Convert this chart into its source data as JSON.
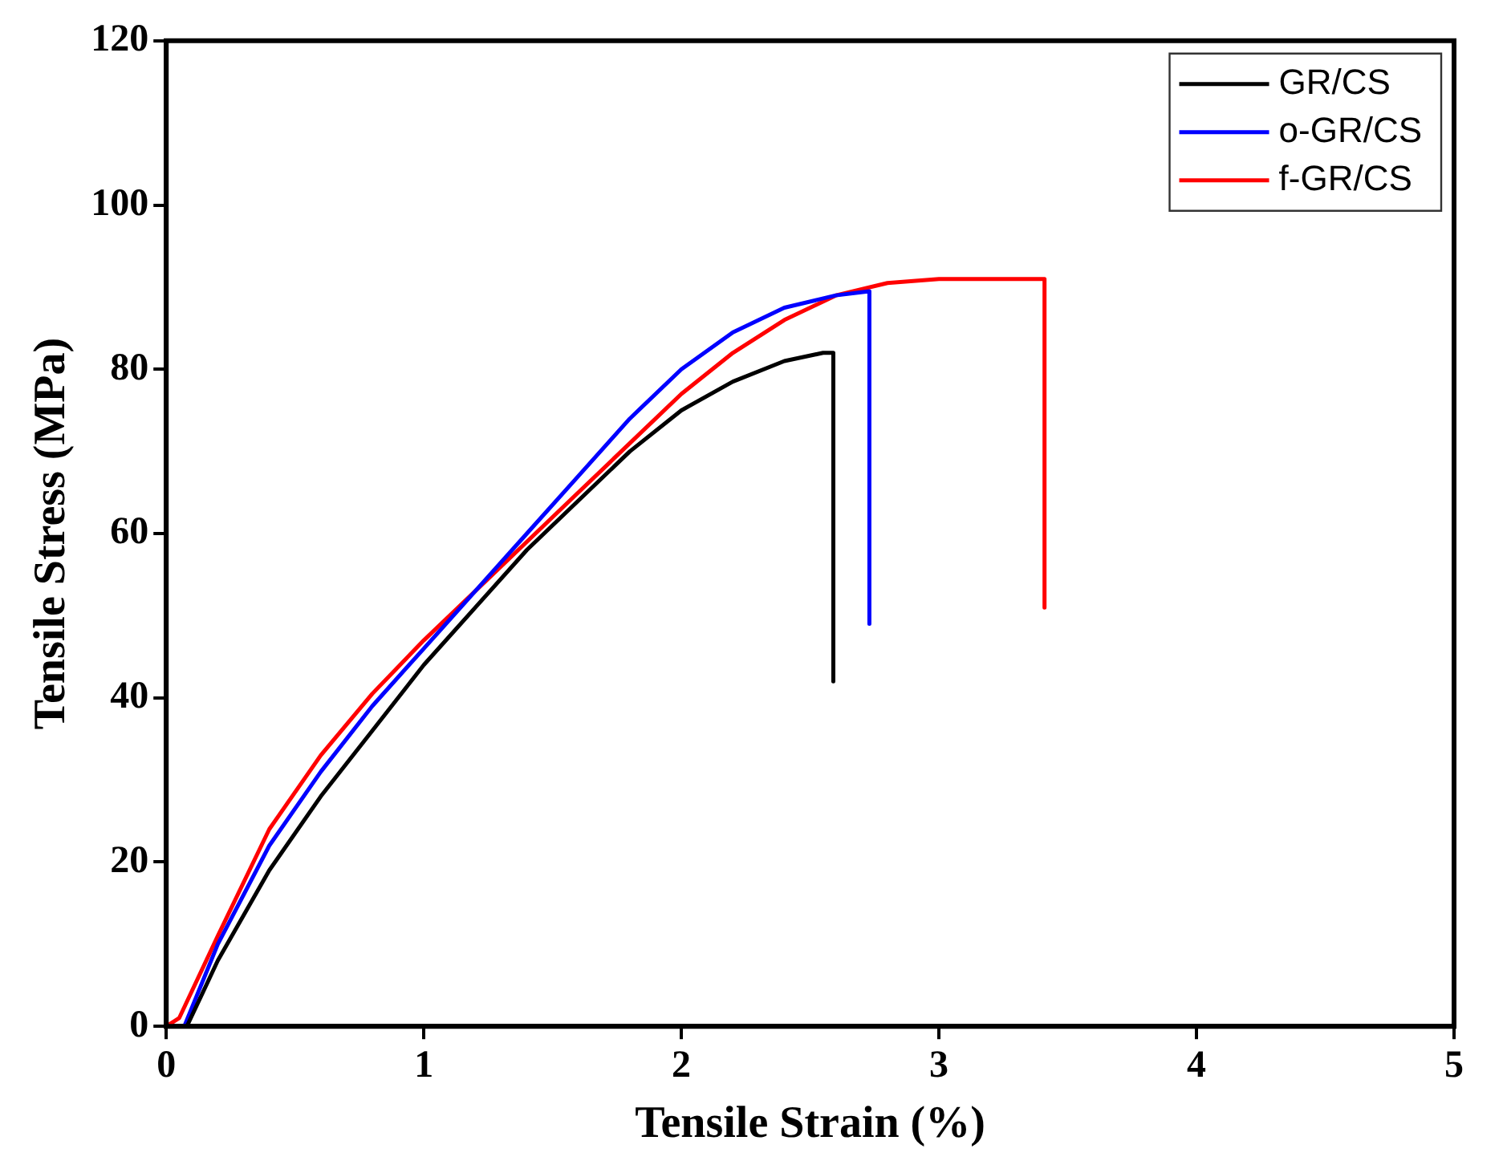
{
  "chart_data": {
    "type": "line",
    "xlabel": "Tensile Strain (%)",
    "ylabel": "Tensile Stress (MPa)",
    "xlim": [
      0,
      5
    ],
    "xticks": [
      0,
      1,
      2,
      3,
      4,
      5
    ],
    "ylim": [
      0,
      120
    ],
    "yticks": [
      0,
      20,
      40,
      60,
      80,
      100,
      120
    ],
    "grid": false,
    "legend": "top right",
    "marker": "none",
    "line_style": "solid",
    "series": [
      {
        "name": "GR/CS",
        "color": "#000000",
        "x": [
          0.08,
          0.2,
          0.4,
          0.6,
          0.8,
          1.0,
          1.2,
          1.4,
          1.6,
          1.8,
          2.0,
          2.2,
          2.4,
          2.55,
          2.59,
          2.59
        ],
        "values": [
          0,
          8,
          19,
          28,
          36,
          44,
          51,
          58,
          64,
          70,
          75,
          78.5,
          81,
          82,
          82,
          42
        ]
      },
      {
        "name": "o-GR/CS",
        "color": "#0000ff",
        "x": [
          0.03,
          0.07,
          0.2,
          0.4,
          0.6,
          0.8,
          1.0,
          1.2,
          1.4,
          1.6,
          1.8,
          2.0,
          2.2,
          2.4,
          2.6,
          2.73,
          2.73
        ],
        "values": [
          0,
          0,
          10,
          22,
          31,
          39,
          46,
          53,
          60,
          67,
          74,
          80,
          84.5,
          87.5,
          89,
          89.5,
          49
        ]
      },
      {
        "name": "f-GR/CS",
        "color": "#ff0000",
        "x": [
          0,
          0.05,
          0.2,
          0.4,
          0.6,
          0.8,
          1.0,
          1.2,
          1.4,
          1.6,
          1.8,
          2.0,
          2.2,
          2.4,
          2.6,
          2.8,
          3.0,
          3.2,
          3.41,
          3.41
        ],
        "values": [
          0,
          1,
          11,
          24,
          33,
          40.5,
          47,
          53,
          59,
          65,
          71,
          77,
          82,
          86,
          89,
          90.5,
          91,
          91,
          91,
          51
        ]
      }
    ]
  }
}
